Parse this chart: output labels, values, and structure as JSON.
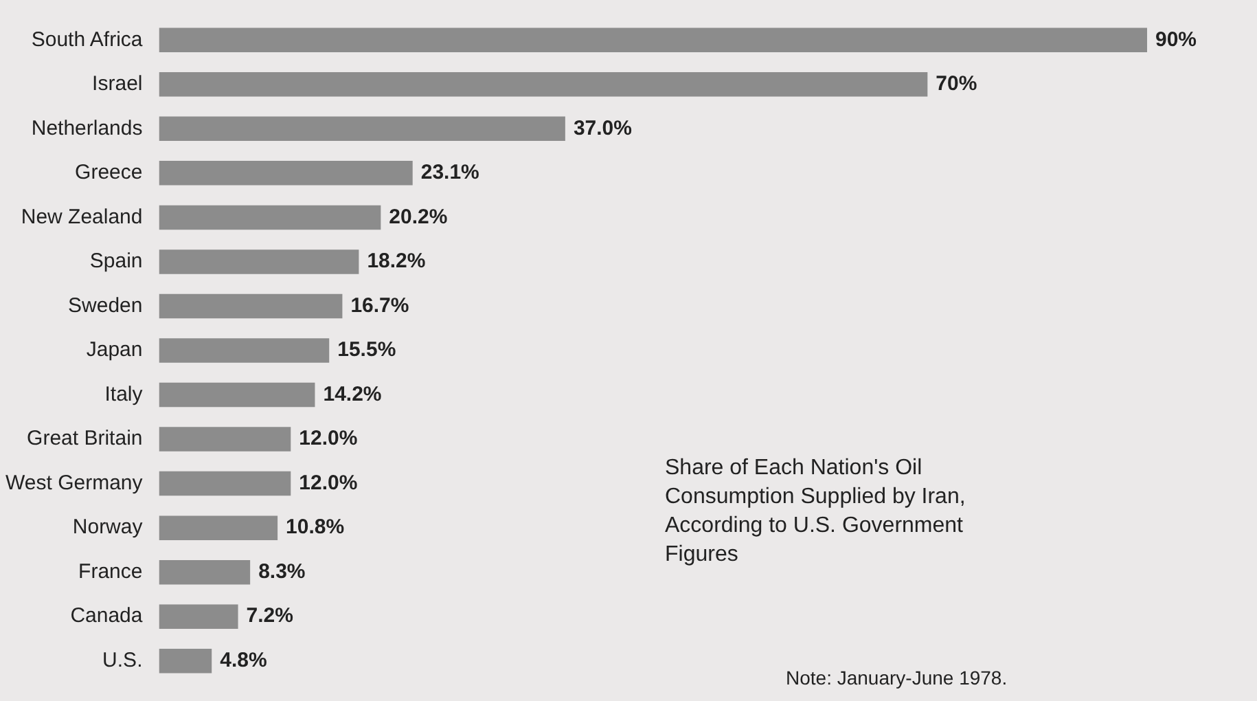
{
  "chart_data": {
    "type": "bar",
    "orientation": "horizontal",
    "title": "Share of Each Nation's Oil Consumption Supplied by Iran, According to U.S. Government Figures",
    "categories": [
      "South Africa",
      "Israel",
      "Netherlands",
      "Greece",
      "New Zealand",
      "Spain",
      "Sweden",
      "Japan",
      "Italy",
      "Great Britain",
      "West Germany",
      "Norway",
      "France",
      "Canada",
      "U.S."
    ],
    "values": [
      90,
      70,
      37.0,
      23.1,
      20.2,
      18.2,
      16.7,
      15.5,
      14.2,
      12.0,
      12.0,
      10.8,
      8.3,
      7.2,
      4.8
    ],
    "value_labels": [
      "90%",
      "70%",
      "37.0%",
      "23.1%",
      "20.2%",
      "18.2%",
      "16.7%",
      "15.5%",
      "14.2%",
      "12.0%",
      "12.0%",
      "10.8%",
      "8.3%",
      "7.2%",
      "4.8%"
    ],
    "color": "#8c8c8c",
    "annotations": [
      "Note: January-June 1978."
    ]
  }
}
